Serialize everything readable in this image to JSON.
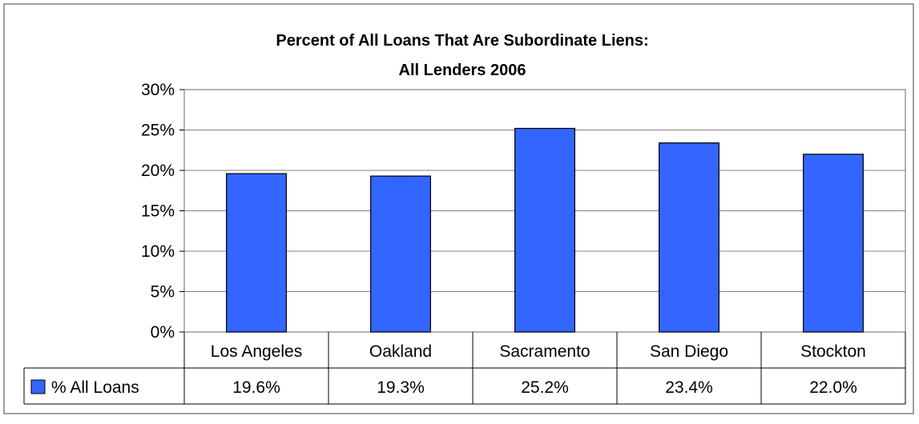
{
  "chart_data": {
    "type": "bar",
    "title": "Percent of All Loans That Are Subordinate Liens:",
    "subtitle": "All Lenders 2006",
    "categories": [
      "Los Angeles",
      "Oakland",
      "Sacramento",
      "San Diego",
      "Stockton"
    ],
    "series": [
      {
        "name": "% All Loans",
        "values": [
          19.6,
          19.3,
          25.2,
          23.4,
          22.0
        ],
        "labels": [
          "19.6%",
          "19.3%",
          "25.2%",
          "23.4%",
          "22.0%"
        ],
        "color": "#3366ff"
      }
    ],
    "ylim": [
      0,
      30
    ],
    "yticks": [
      "0%",
      "5%",
      "10%",
      "15%",
      "20%",
      "25%",
      "30%"
    ],
    "grid": true,
    "legend": "data-table",
    "colors": {
      "bar": "#3366ff",
      "bar_stroke": "#000000",
      "grid": "#808080",
      "border": "#808080"
    }
  }
}
